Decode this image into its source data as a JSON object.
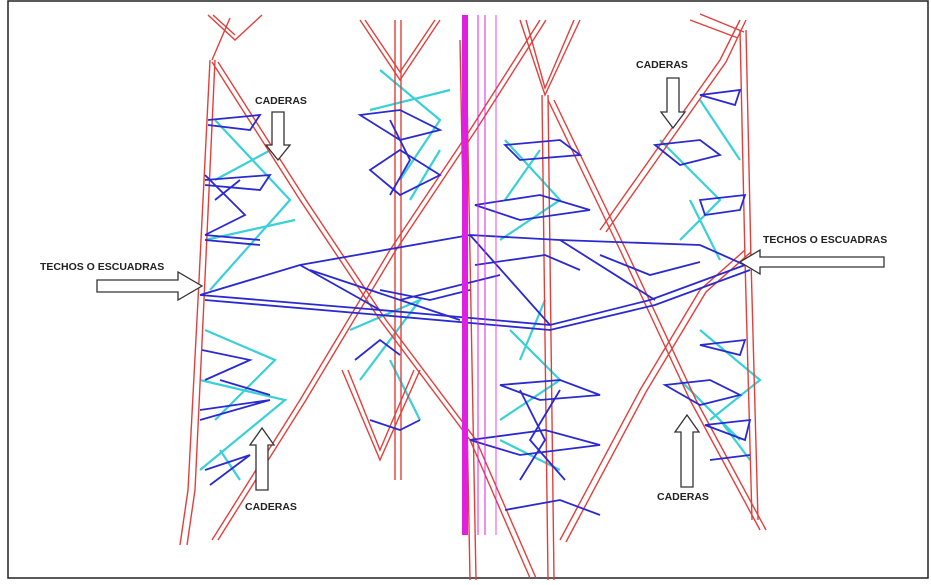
{
  "labels": {
    "caderas_top_left": "CADERAS",
    "caderas_top_right": "CADERAS",
    "techos_left": "TECHOS O ESCUADRAS",
    "techos_right": "TECHOS O ESCUADRAS",
    "caderas_bottom_left": "CADERAS",
    "caderas_bottom_right": "CADERAS"
  },
  "colors": {
    "legs": "#e0403c",
    "bracing": "#2a2ad0",
    "cyan_bracing": "#3ad0d8",
    "mast": "#e020e0",
    "arrow_outline": "#333333",
    "border": "#222222"
  }
}
